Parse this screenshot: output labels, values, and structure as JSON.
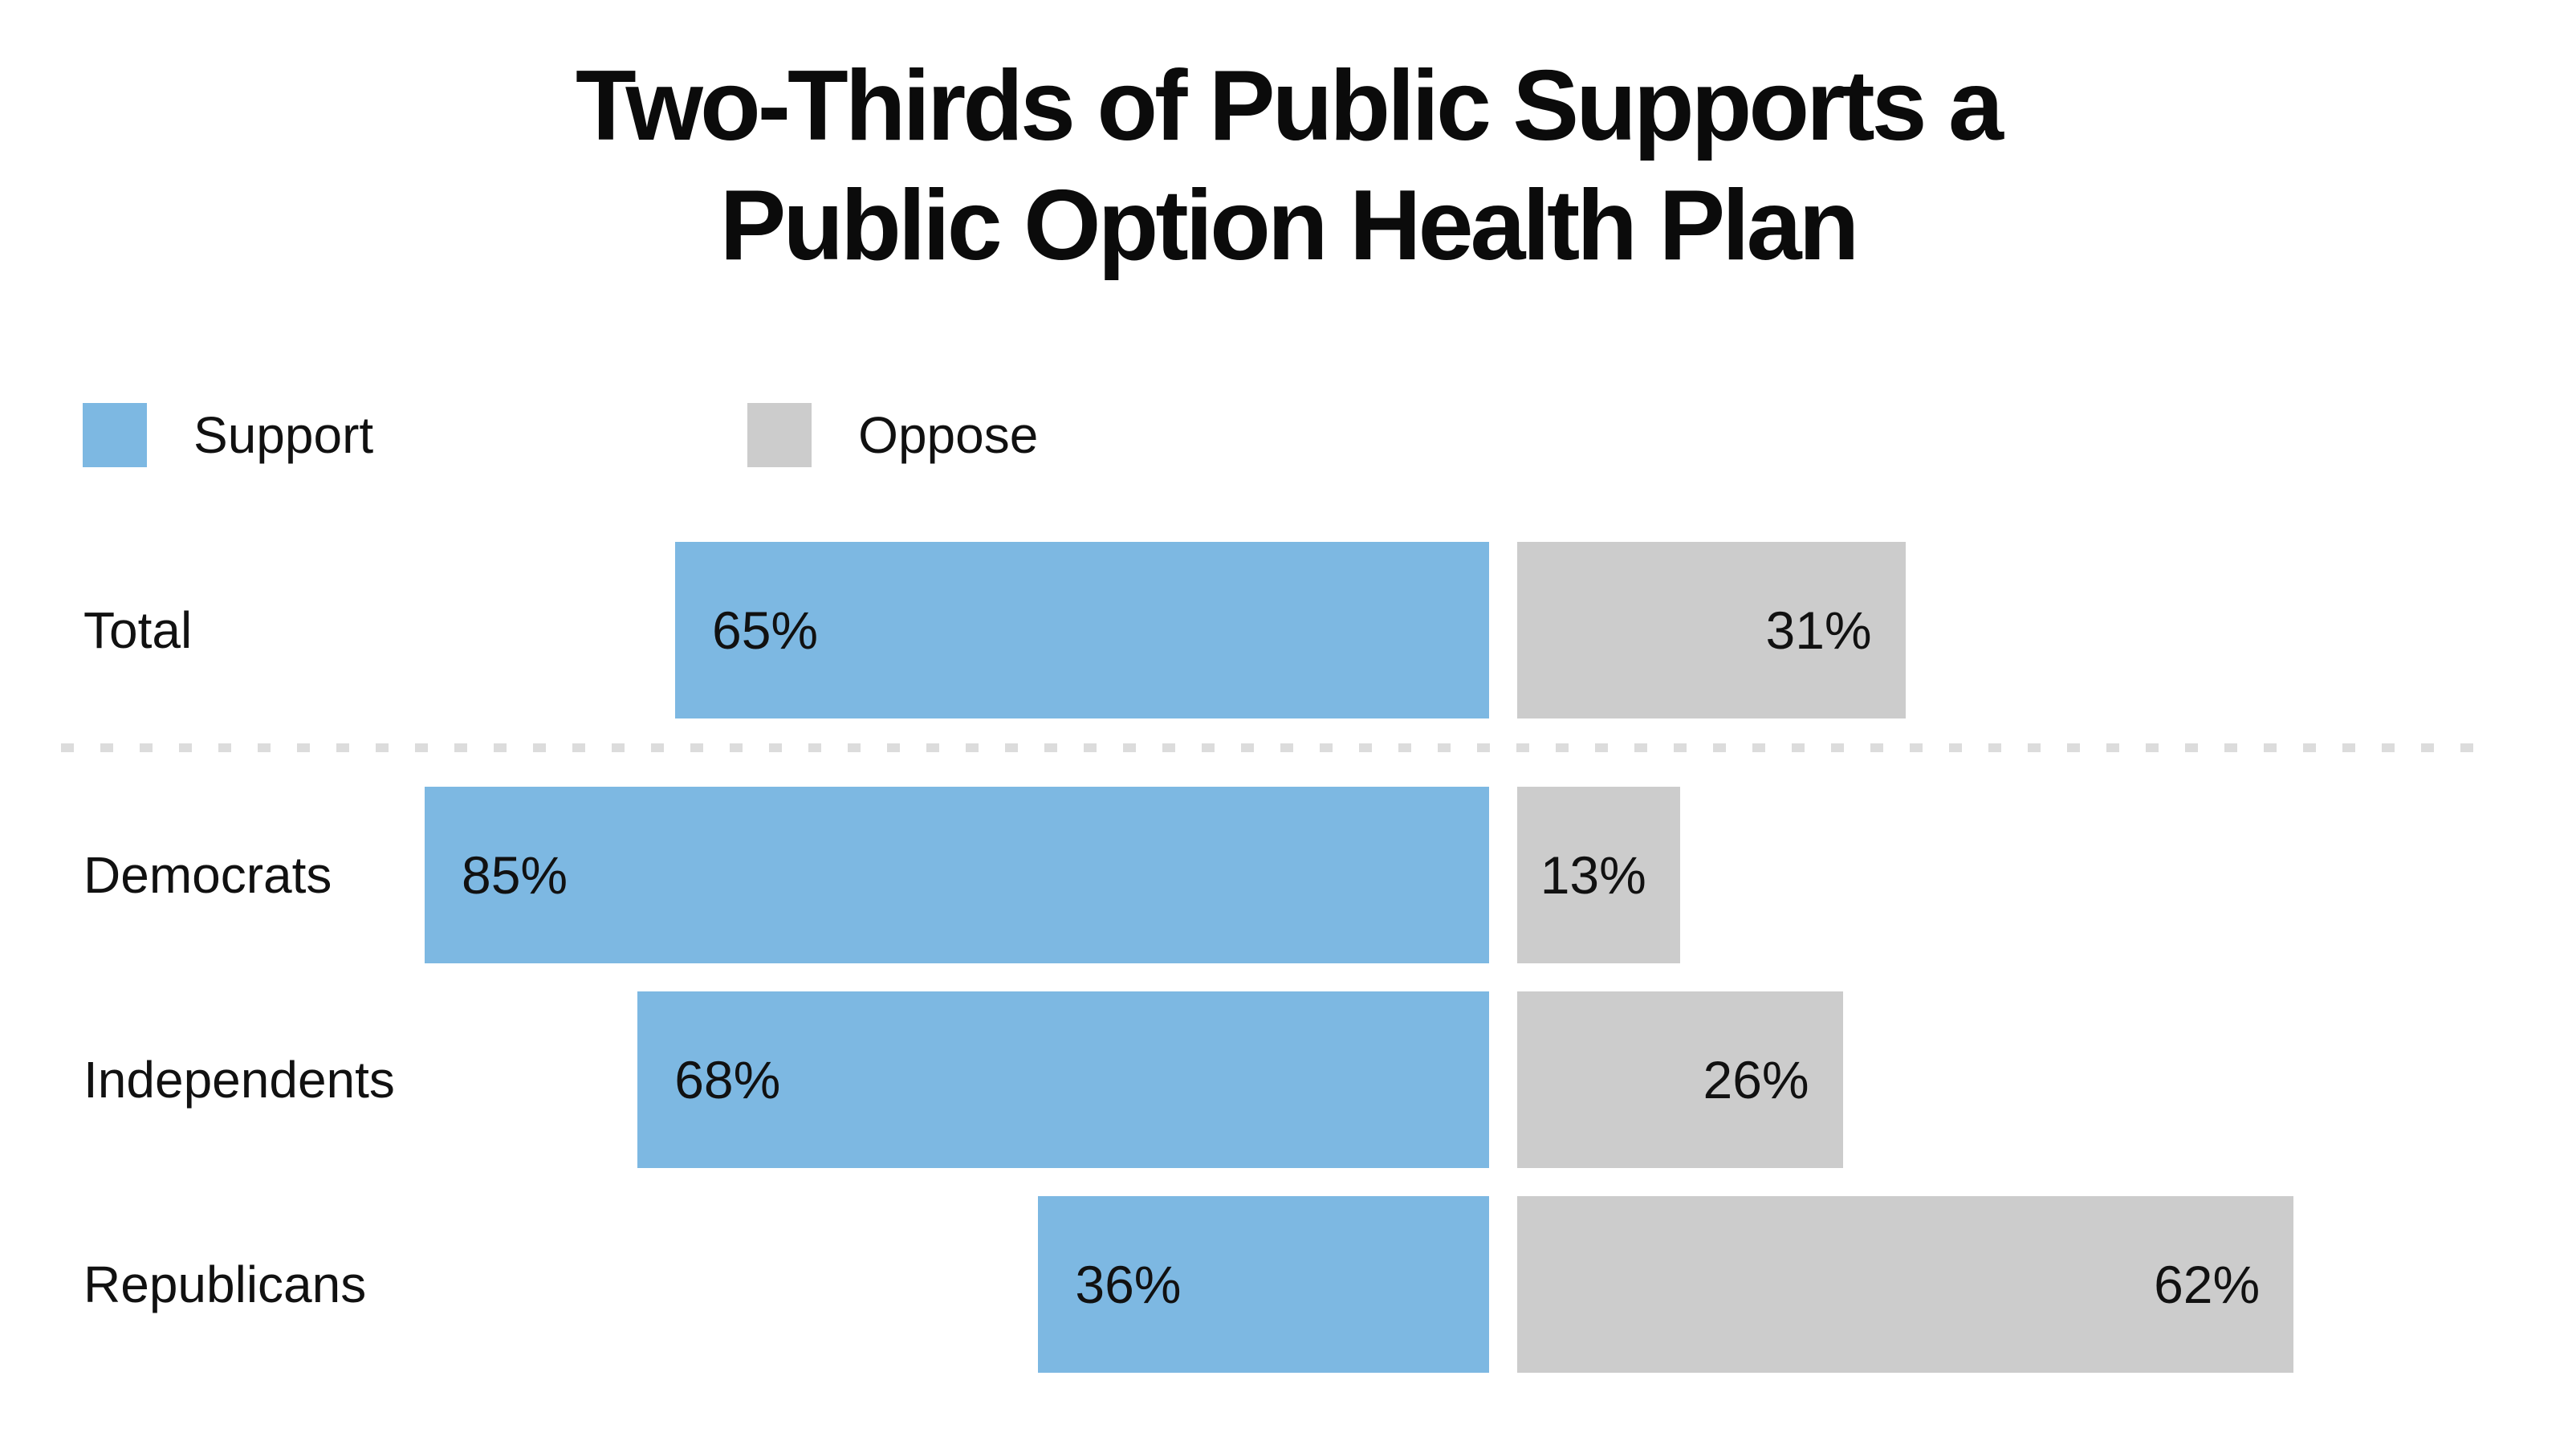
{
  "title": {
    "line1": "Two-Thirds of Public Supports a",
    "line2": "Public Option Health Plan"
  },
  "legend": {
    "support_label": "Support",
    "oppose_label": "Oppose"
  },
  "colors": {
    "support": "#7DB8E2",
    "oppose": "#CCCCCC",
    "divider": "#DCDCDC",
    "text": "#111111"
  },
  "rows": [
    {
      "label": "Total",
      "support_text": "65%",
      "oppose_text": "31%"
    },
    {
      "label": "Democrats",
      "support_text": "85%",
      "oppose_text": "13%"
    },
    {
      "label": "Independents",
      "support_text": "68%",
      "oppose_text": "26%"
    },
    {
      "label": "Republicans",
      "support_text": "36%",
      "oppose_text": "62%"
    }
  ],
  "chart_data": {
    "type": "bar",
    "orientation": "horizontal-diverging",
    "title": "Two-Thirds of Public Supports a Public Option Health Plan",
    "categories": [
      "Total",
      "Democrats",
      "Independents",
      "Republicans"
    ],
    "series": [
      {
        "name": "Support",
        "color": "#7DB8E2",
        "values": [
          65,
          85,
          68,
          36
        ]
      },
      {
        "name": "Oppose",
        "color": "#CCCCCC",
        "values": [
          31,
          13,
          26,
          62
        ]
      }
    ],
    "value_format": "percent",
    "xlim": [
      0,
      100
    ],
    "grid": false,
    "legend_position": "top-left",
    "divider_after_category": "Total",
    "layout_note": "Support bars grow leftward from center axis; Oppose bars grow rightward; value labels inside bars"
  }
}
